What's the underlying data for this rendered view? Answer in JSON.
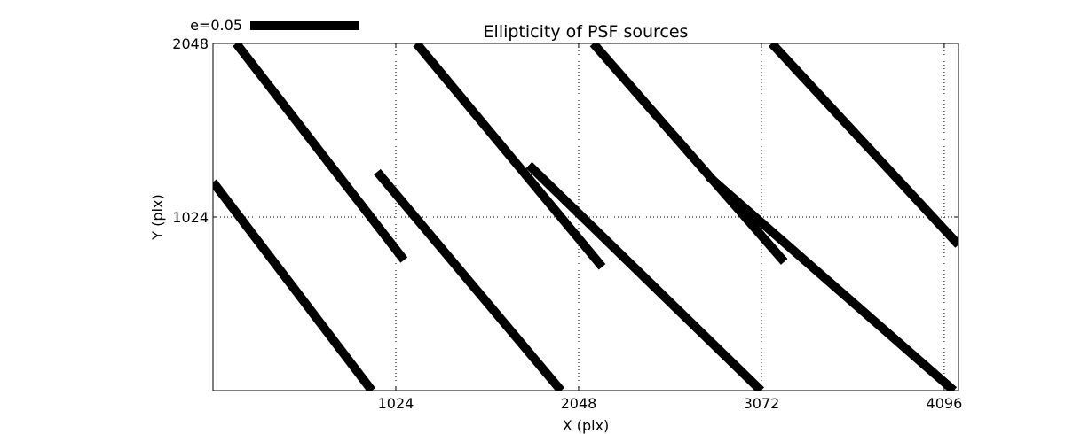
{
  "chart_data": {
    "type": "line",
    "title": "Ellipticity of PSF sources",
    "xlabel": "X (pix)",
    "ylabel": "Y (pix)",
    "xlim": [
      0,
      4176
    ],
    "ylim": [
      0,
      2048
    ],
    "xticks": [
      1024,
      2048,
      3072,
      4096
    ],
    "yticks": [
      1024,
      2048
    ],
    "grid": true,
    "grid_style": "dotted",
    "line_color": "#000000",
    "legend": {
      "label": "e=0.05",
      "placement": "top-left"
    },
    "segments": [
      {
        "x": [
          0,
          890
        ],
        "y": [
          1230,
          0
        ]
      },
      {
        "x": [
          130,
          1070
        ],
        "y": [
          2048,
          770
        ]
      },
      {
        "x": [
          920,
          1950
        ],
        "y": [
          1290,
          0
        ]
      },
      {
        "x": [
          1140,
          2180
        ],
        "y": [
          2048,
          730
        ]
      },
      {
        "x": [
          1770,
          3070
        ],
        "y": [
          1330,
          0
        ]
      },
      {
        "x": [
          2130,
          3200
        ],
        "y": [
          2048,
          760
        ]
      },
      {
        "x": [
          2780,
          4150
        ],
        "y": [
          1260,
          0
        ]
      },
      {
        "x": [
          3130,
          4176
        ],
        "y": [
          2048,
          860
        ]
      }
    ]
  }
}
